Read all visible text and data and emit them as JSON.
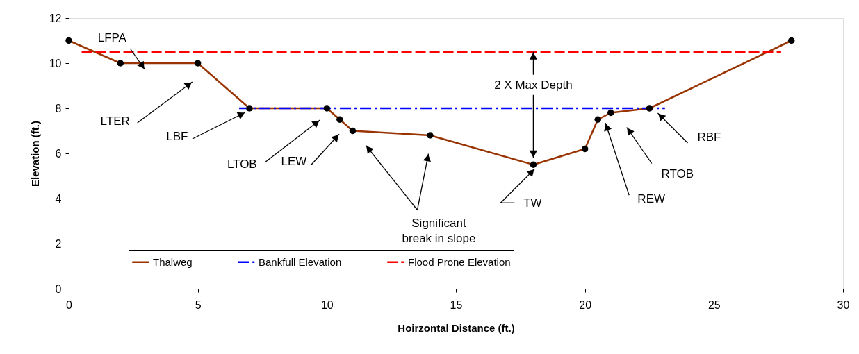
{
  "chart_data": {
    "type": "line",
    "xlabel": "Hoirzontal Distance (ft.)",
    "ylabel": "Elevation (ft.)",
    "xlim": [
      0,
      30
    ],
    "xticks": [
      0,
      5,
      10,
      15,
      20,
      25,
      30
    ],
    "ylim": [
      0,
      12
    ],
    "yticks": [
      0,
      2,
      4,
      6,
      8,
      10,
      12
    ],
    "grid": false,
    "legend": "bottom",
    "series": [
      {
        "name": "Thalweg",
        "color": "#993300",
        "marker": "circle",
        "line_style": "solid",
        "x": [
          0,
          2,
          5,
          7,
          10,
          10.5,
          11,
          14,
          18,
          20,
          20.5,
          21,
          22.5,
          28
        ],
        "values": [
          11,
          10,
          10,
          8,
          8,
          7.5,
          7,
          6.8,
          5.5,
          6.2,
          7.5,
          7.8,
          8,
          11
        ]
      },
      {
        "name": "Bankfull Elevation",
        "color": "#0000ff",
        "marker": "none",
        "line_style": "dashdot",
        "x": [
          6.6,
          23.1
        ],
        "values": [
          8,
          8
        ]
      },
      {
        "name": "Flood Prone Elevation",
        "color": "#ff0000",
        "marker": "none",
        "line_style": "dashed",
        "x": [
          0.5,
          27.6
        ],
        "values": [
          10.5,
          10.5
        ]
      }
    ],
    "annotations": [
      "LFPA",
      "LTER",
      "LBF",
      "LTOB",
      "LEW",
      "Significant\nbreak in slope",
      {
        "text": "2 X Max Depth",
        "x": 18,
        "y": 10.5
      },
      "TW",
      "REW",
      "RTOB",
      "RBF"
    ]
  }
}
